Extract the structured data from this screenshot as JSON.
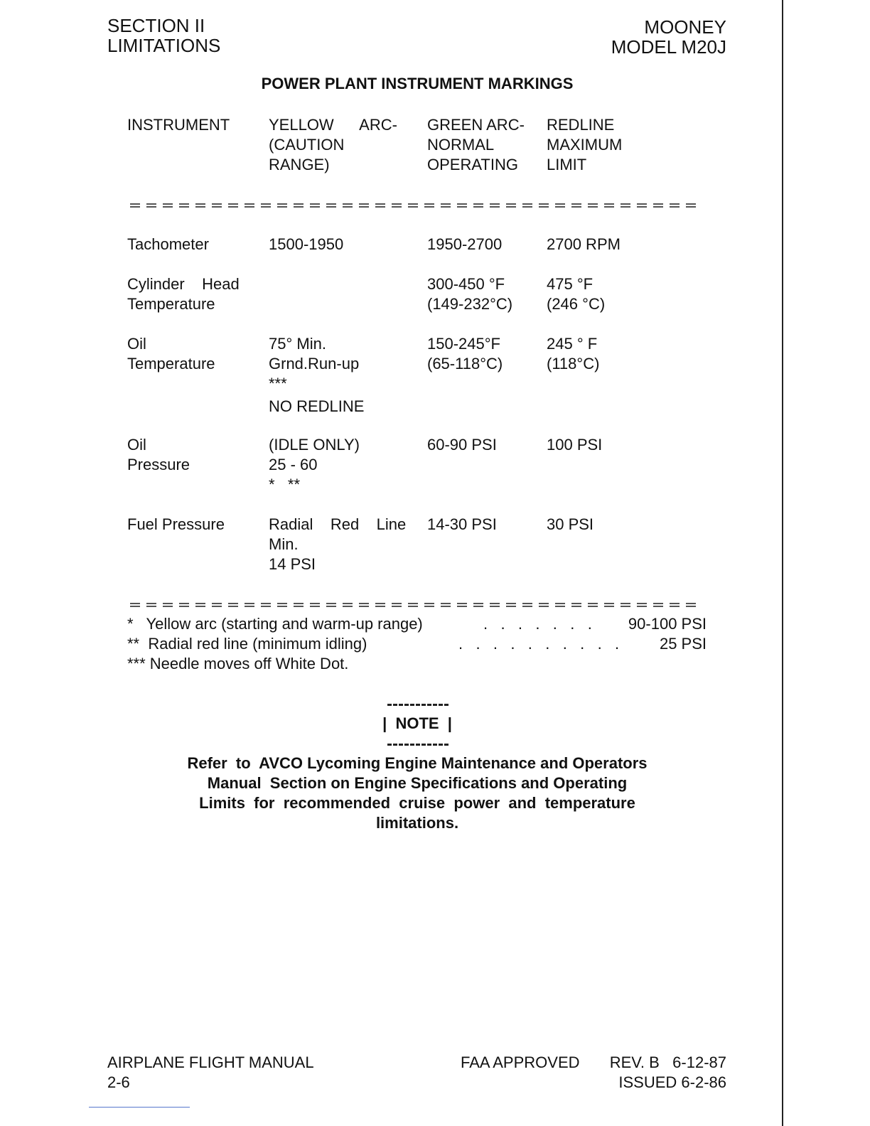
{
  "header": {
    "left": [
      "SECTION II",
      "LIMITATIONS"
    ],
    "right": [
      "MOONEY",
      "MODEL M20J"
    ]
  },
  "title": "POWER PLANT INSTRUMENT MARKINGS",
  "table": {
    "columns": [
      [
        "INSTRUMENT"
      ],
      [
        "YELLOW      ARC-",
        "(CAUTION",
        "RANGE)"
      ],
      [
        "GREEN ARC-",
        "NORMAL",
        "OPERATING"
      ],
      [
        "REDLINE",
        "MAXIMUM",
        "LIMIT"
      ]
    ],
    "rows": [
      {
        "instrument": [
          "Tachometer"
        ],
        "yellow": [
          "1500-1950"
        ],
        "green": [
          "1950-2700"
        ],
        "redline": [
          "2700 RPM"
        ]
      },
      {
        "instrument": [
          "Cylinder    Head",
          "Temperature"
        ],
        "yellow": [],
        "green": [
          "300-450 °F",
          "(149-232°C)"
        ],
        "redline": [
          "475 °F",
          "(246 °C)"
        ]
      },
      {
        "instrument": [
          "Oil",
          "Temperature"
        ],
        "yellow": [
          "75° Min.",
          "Grnd.Run-up",
          "***",
          "NO REDLINE"
        ],
        "green": [
          "150-245°F",
          "(65-118°C)"
        ],
        "redline": [
          "245 ° F",
          "(118°C)"
        ]
      },
      {
        "instrument": [
          "Oil",
          "Pressure"
        ],
        "yellow": [
          "(IDLE ONLY)",
          "25 - 60",
          "*   **"
        ],
        "green": [
          "60-90 PSI"
        ],
        "redline": [
          "100 PSI"
        ]
      },
      {
        "instrument": [
          "Fuel Pressure"
        ],
        "yellow": [
          "Radial    Red    Line",
          "Min.",
          "14 PSI"
        ],
        "green": [
          "14-30 PSI"
        ],
        "redline": [
          "30 PSI"
        ]
      }
    ]
  },
  "footnotes": [
    {
      "text": "*   Yellow arc (starting and warm-up range)",
      "leader": ".   .   .   .   .   .   .",
      "value": "90-100 PSI"
    },
    {
      "text": "**  Radial red line (minimum idling)",
      "leader": ".   .   .   .   .   .   .   .   .   .",
      "value": "25 PSI"
    },
    {
      "text": "*** Needle moves off White Dot.",
      "leader": "",
      "value": ""
    }
  ],
  "note": {
    "label": "|  NOTE  |",
    "lines": [
      "Refer  to  AVCO Lycoming Engine Maintenance and Operators",
      "Manual  Section on Engine Specifications and Operating",
      "Limits  for  recommended  cruise  power  and  temperature",
      "limitations."
    ]
  },
  "footer": {
    "left": [
      "AIRPLANE FLIGHT MANUAL",
      "2-6"
    ],
    "center": "FAA APPROVED",
    "right": [
      "REV. B   6-12-87",
      "ISSUED 6-2-86"
    ]
  }
}
